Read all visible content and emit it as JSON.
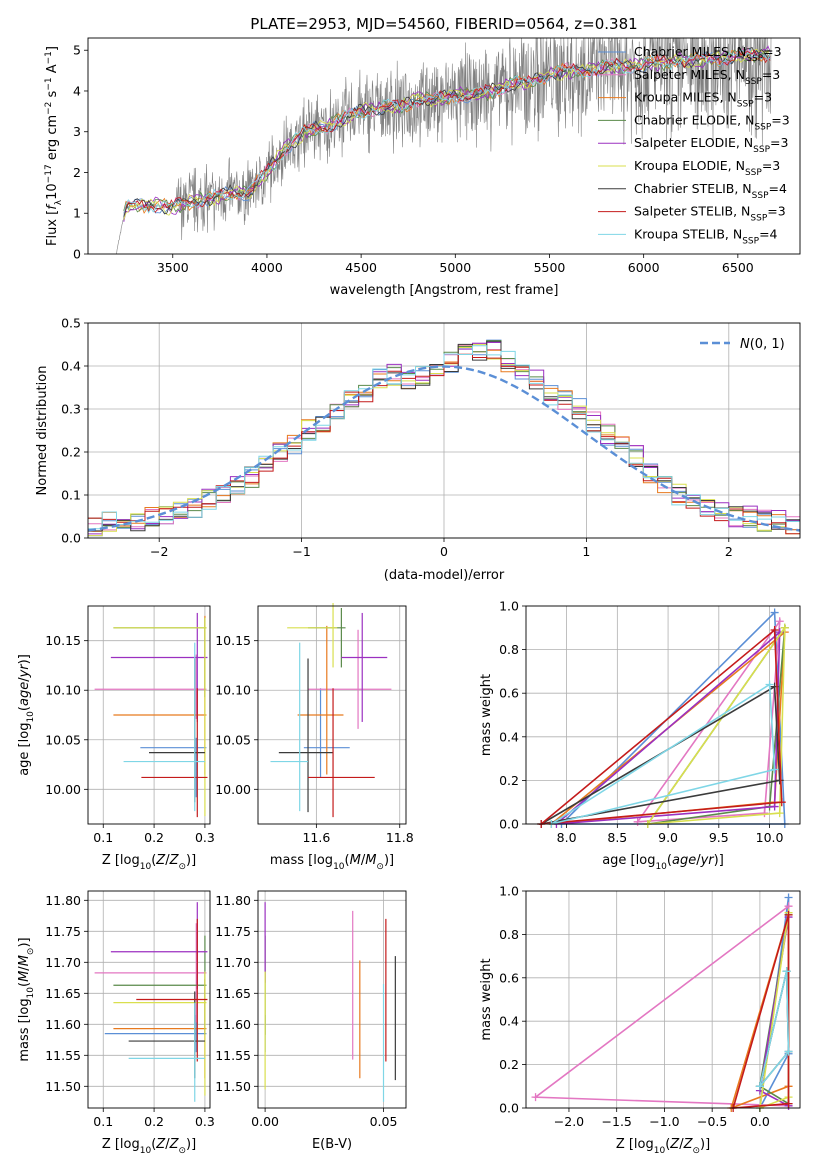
{
  "figure": {
    "title": "PLATE=2953, MJD=54560, FIBERID=0564, z=0.381"
  },
  "colors": {
    "Chabrier MILES": "#5b8fd6",
    "Salpeter MILES": "#e377c2",
    "Kroupa MILES": "#e87a1f",
    "Chabrier ELODIE": "#5a8a4a",
    "Salpeter ELODIE": "#9b30c0",
    "Kroupa ELODIE": "#d9df4e",
    "Chabrier STELIB": "#3b3b3b",
    "Salpeter STELIB": "#c41b1b",
    "Kroupa STELIB": "#7fd6e6",
    "gaussian": "#5b8fd6",
    "spectrum": "#808080"
  },
  "chart_data": [
    {
      "id": "spectrum",
      "type": "line",
      "xlabel": "wavelength [Angstrom, rest frame]",
      "ylabel": "Flux [f_λ 10^-17 erg cm^-2 s^-1 A^-1]",
      "xlim": [
        3050,
        6830
      ],
      "ylim": [
        0,
        5.3
      ],
      "xticks": [
        3500,
        4000,
        4500,
        5000,
        5500,
        6000,
        6500
      ],
      "yticks": [
        0,
        1,
        2,
        3,
        4,
        5
      ],
      "data_trend": {
        "x": [
          3200,
          3250,
          3300,
          3400,
          3500,
          3600,
          3700,
          3800,
          3900,
          4000,
          4100,
          4200,
          4300,
          4400,
          4500,
          4600,
          4700,
          4800,
          4900,
          5000,
          5100,
          5200,
          5300,
          5400,
          5500,
          5600,
          5700,
          5800,
          5900,
          6000,
          6100,
          6200,
          6300,
          6400,
          6500,
          6600,
          6680
        ],
        "y": [
          0,
          1.15,
          1.2,
          1.2,
          1.15,
          1.3,
          1.35,
          1.5,
          1.5,
          2.0,
          2.6,
          3.0,
          3.1,
          3.3,
          3.5,
          3.6,
          3.6,
          3.8,
          3.8,
          3.9,
          3.9,
          4.0,
          4.2,
          4.2,
          4.4,
          4.5,
          4.5,
          4.6,
          4.6,
          4.65,
          4.7,
          4.75,
          4.75,
          4.8,
          4.85,
          4.9,
          4.9
        ]
      },
      "series": [
        {
          "name": "Chabrier MILES, N_SSP=3",
          "label": "Chabrier MILES, N",
          "n": "=3"
        },
        {
          "name": "Salpeter MILES, N_SSP=3",
          "label": "Salpeter MILES, N",
          "n": "=3"
        },
        {
          "name": "Kroupa MILES, N_SSP=3",
          "label": "Kroupa MILES, N",
          "n": "=3"
        },
        {
          "name": "Chabrier ELODIE, N_SSP=3",
          "label": "Chabrier ELODIE, N",
          "n": "=3"
        },
        {
          "name": "Salpeter ELODIE, N_SSP=3",
          "label": "Salpeter ELODIE, N",
          "n": "=3"
        },
        {
          "name": "Kroupa ELODIE, N_SSP=3",
          "label": "Kroupa ELODIE, N",
          "n": "=3"
        },
        {
          "name": "Chabrier STELIB, N_SSP=4",
          "label": "Chabrier STELIB, N",
          "n": "=4"
        },
        {
          "name": "Salpeter STELIB, N_SSP=3",
          "label": "Salpeter STELIB, N",
          "n": "=3"
        },
        {
          "name": "Kroupa STELIB, N_SSP=4",
          "label": "Kroupa STELIB, N",
          "n": "=4"
        }
      ],
      "legend": "top-right"
    },
    {
      "id": "histogram",
      "type": "bar",
      "xlabel": "(data-model)/error",
      "ylabel": "Normed distribution",
      "xlim": [
        -2.5,
        2.5
      ],
      "ylim": [
        0,
        0.5
      ],
      "xticks": [
        -2,
        -1,
        0,
        1,
        2
      ],
      "yticks": [
        0.0,
        0.1,
        0.2,
        0.3,
        0.4,
        0.5
      ],
      "grid": true,
      "bins": [
        -2.5,
        -2.4,
        -2.3,
        -2.2,
        -2.1,
        -2.0,
        -1.9,
        -1.8,
        -1.7,
        -1.6,
        -1.5,
        -1.4,
        -1.3,
        -1.2,
        -1.1,
        -1.0,
        -0.9,
        -0.8,
        -0.7,
        -0.6,
        -0.5,
        -0.4,
        -0.3,
        -0.2,
        -0.1,
        0.0,
        0.1,
        0.2,
        0.3,
        0.4,
        0.5,
        0.6,
        0.7,
        0.8,
        0.9,
        1.0,
        1.1,
        1.2,
        1.3,
        1.4,
        1.5,
        1.6,
        1.7,
        1.8,
        1.9,
        2.0,
        2.1,
        2.2,
        2.3,
        2.4,
        2.5
      ],
      "histogram_values": [
        0.03,
        0.04,
        0.03,
        0.04,
        0.05,
        0.05,
        0.06,
        0.07,
        0.09,
        0.1,
        0.12,
        0.14,
        0.17,
        0.2,
        0.22,
        0.25,
        0.27,
        0.3,
        0.33,
        0.34,
        0.37,
        0.38,
        0.37,
        0.38,
        0.4,
        0.41,
        0.43,
        0.43,
        0.44,
        0.41,
        0.38,
        0.37,
        0.33,
        0.32,
        0.3,
        0.27,
        0.24,
        0.22,
        0.19,
        0.15,
        0.12,
        0.1,
        0.08,
        0.07,
        0.06,
        0.05,
        0.05,
        0.04,
        0.04,
        0.03
      ],
      "gaussian_label": "N(0,1)",
      "legend": "top-right"
    },
    {
      "id": "z-age",
      "type": "scatter",
      "xlabel": "Z [log10(Z/Z⊙)]",
      "ylabel": "age  [log10(age/yr)]",
      "xlim": [
        0.07,
        0.31
      ],
      "ylim": [
        9.965,
        10.185
      ],
      "xticks": [
        0.1,
        0.2,
        0.3
      ],
      "yticks": [
        10.0,
        10.05,
        10.1,
        10.15
      ],
      "grid": true,
      "points": [
        {
          "series": "Chabrier MILES",
          "x": 0.283,
          "y": 10.042,
          "xerr": [
            0.11,
            0.02
          ],
          "yerr": [
            0.05,
            0.01
          ]
        },
        {
          "series": "Salpeter MILES",
          "x": 0.283,
          "y": 10.101,
          "xerr": [
            0.2,
            0.02
          ],
          "yerr": [
            0.03,
            0.035
          ]
        },
        {
          "series": "Kroupa MILES",
          "x": 0.3,
          "y": 10.075,
          "xerr": [
            0.18,
            0.003
          ],
          "yerr": [
            0.06,
            0.1
          ]
        },
        {
          "series": "Chabrier ELODIE",
          "x": 0.3,
          "y": 10.163,
          "xerr": [
            0.18,
            0.003
          ],
          "yerr": [
            0.07,
            0.01
          ]
        },
        {
          "series": "Salpeter ELODIE",
          "x": 0.285,
          "y": 10.133,
          "xerr": [
            0.17,
            0.02
          ],
          "yerr": [
            0.065,
            0.045
          ]
        },
        {
          "series": "Kroupa ELODIE",
          "x": 0.3,
          "y": 10.163,
          "xerr": [
            0.18,
            0.003
          ],
          "yerr": [
            0.19,
            0.01
          ]
        },
        {
          "series": "Chabrier STELIB",
          "x": 0.28,
          "y": 10.037,
          "xerr": [
            0.09,
            0.02
          ],
          "yerr": [
            0.05,
            0.095
          ]
        },
        {
          "series": "Salpeter STELIB",
          "x": 0.285,
          "y": 10.012,
          "xerr": [
            0.11,
            0.02
          ],
          "yerr": [
            0.04,
            0.09
          ]
        },
        {
          "series": "Kroupa STELIB",
          "x": 0.28,
          "y": 10.028,
          "xerr": [
            0.14,
            0.02
          ],
          "yerr": [
            0.05,
            0.12
          ]
        }
      ]
    },
    {
      "id": "mass-age",
      "type": "scatter",
      "xlabel": "mass [log10(M/M⊙)]",
      "ylabel": "",
      "xlim": [
        11.46,
        11.815
      ],
      "ylim": [
        9.965,
        10.185
      ],
      "xticks": [
        11.6,
        11.8
      ],
      "yticks": [
        10.0,
        10.05,
        10.1,
        10.15
      ],
      "grid": true,
      "points": [
        {
          "series": "Chabrier MILES",
          "x": 11.61,
          "y": 10.042,
          "xerr": [
            0.04,
            0.07
          ],
          "yerr": [
            0.03,
            0.06
          ]
        },
        {
          "series": "Salpeter MILES",
          "x": 11.7,
          "y": 10.101,
          "xerr": [
            0.12,
            0.08
          ],
          "yerr": [
            0.04,
            0.06
          ]
        },
        {
          "series": "Kroupa MILES",
          "x": 11.625,
          "y": 10.075,
          "xerr": [
            0.07,
            0.04
          ],
          "yerr": [
            0.06,
            0.09
          ]
        },
        {
          "series": "Chabrier ELODIE",
          "x": 11.66,
          "y": 10.163,
          "xerr": [
            0.08,
            0.01
          ],
          "yerr": [
            0.04,
            0.02
          ]
        },
        {
          "series": "Salpeter ELODIE",
          "x": 11.71,
          "y": 10.133,
          "xerr": [
            0.05,
            0.06
          ],
          "yerr": [
            0.065,
            0.045
          ]
        },
        {
          "series": "Kroupa ELODIE",
          "x": 11.64,
          "y": 10.163,
          "xerr": [
            0.11,
            0.01
          ],
          "yerr": [
            0.04,
            0.025
          ]
        },
        {
          "series": "Chabrier STELIB",
          "x": 11.58,
          "y": 10.037,
          "xerr": [
            0.07,
            0.06
          ],
          "yerr": [
            0.06,
            0.095
          ]
        },
        {
          "series": "Salpeter STELIB",
          "x": 11.64,
          "y": 10.012,
          "xerr": [
            0.06,
            0.1
          ],
          "yerr": [
            0.04,
            0.09
          ]
        },
        {
          "series": "Kroupa STELIB",
          "x": 11.56,
          "y": 10.028,
          "xerr": [
            0.07,
            0.02
          ],
          "yerr": [
            0.05,
            0.12
          ]
        }
      ]
    },
    {
      "id": "age-weight",
      "type": "line",
      "xlabel": "age  [log10(age/yr)]",
      "ylabel": "mass weight",
      "xlim": [
        7.6,
        10.3
      ],
      "ylim": [
        0.0,
        1.0
      ],
      "xticks": [
        8.0,
        8.5,
        9.0,
        9.5,
        10.0
      ],
      "yticks": [
        0.0,
        0.2,
        0.4,
        0.6,
        0.8,
        1.0
      ],
      "grid": true,
      "series": [
        {
          "name": "Chabrier MILES",
          "x": [
            7.95,
            10.05,
            10.15
          ],
          "y": [
            0.0,
            0.97,
            0.0
          ]
        },
        {
          "name": "Salpeter MILES",
          "x": [
            8.7,
            9.95,
            10.1
          ],
          "y": [
            0.01,
            0.05,
            0.93
          ]
        },
        {
          "name": "Kroupa MILES",
          "x": [
            7.85,
            10.05,
            10.15
          ],
          "y": [
            0.0,
            0.1,
            0.88
          ]
        },
        {
          "name": "Chabrier ELODIE",
          "x": [
            8.8,
            10.0,
            10.15
          ],
          "y": [
            0.0,
            0.08,
            0.9
          ]
        },
        {
          "name": "Salpeter ELODIE",
          "x": [
            7.9,
            10.05,
            10.1
          ],
          "y": [
            0.0,
            0.08,
            0.88
          ]
        },
        {
          "name": "Kroupa ELODIE",
          "x": [
            8.8,
            10.15,
            10.1
          ],
          "y": [
            0.0,
            0.9,
            0.05
          ]
        },
        {
          "name": "Chabrier STELIB",
          "x": [
            7.75,
            10.05,
            10.1
          ],
          "y": [
            0.0,
            0.63,
            0.2
          ]
        },
        {
          "name": "Salpeter STELIB",
          "x": [
            7.75,
            10.05,
            10.12
          ],
          "y": [
            0.0,
            0.89,
            0.1
          ]
        },
        {
          "name": "Kroupa STELIB",
          "x": [
            7.85,
            10.0,
            10.05
          ],
          "y": [
            0.0,
            0.64,
            0.25
          ]
        }
      ]
    },
    {
      "id": "z-mass",
      "type": "scatter",
      "xlabel": "Z [log10(Z/Z⊙)]",
      "ylabel": "mass [log10(M/M⊙)]",
      "xlim": [
        0.07,
        0.31
      ],
      "ylim": [
        11.465,
        11.815
      ],
      "xticks": [
        0.1,
        0.2,
        0.3
      ],
      "yticks": [
        11.5,
        11.55,
        11.6,
        11.65,
        11.7,
        11.75,
        11.8
      ],
      "grid": true,
      "points": [
        {
          "series": "Chabrier MILES",
          "x": 0.283,
          "y": 11.585,
          "xerr": [
            0.18,
            0.02
          ],
          "yerr": [
            0.03,
            0.03
          ]
        },
        {
          "series": "Salpeter MILES",
          "x": 0.283,
          "y": 11.683,
          "xerr": [
            0.2,
            0.02
          ],
          "yerr": [
            0.08,
            0.08
          ]
        },
        {
          "series": "Kroupa MILES",
          "x": 0.3,
          "y": 11.593,
          "xerr": [
            0.18,
            0.003
          ],
          "yerr": [
            0.08,
            0.08
          ]
        },
        {
          "series": "Chabrier ELODIE",
          "x": 0.3,
          "y": 11.663,
          "xerr": [
            0.18,
            0.003
          ],
          "yerr": [
            0.08,
            0.08
          ]
        },
        {
          "series": "Salpeter ELODIE",
          "x": 0.285,
          "y": 11.717,
          "xerr": [
            0.17,
            0.02
          ],
          "yerr": [
            0.06,
            0.08
          ]
        },
        {
          "series": "Kroupa ELODIE",
          "x": 0.3,
          "y": 11.635,
          "xerr": [
            0.18,
            0.003
          ],
          "yerr": [
            0.15,
            0.05
          ]
        },
        {
          "series": "Chabrier STELIB",
          "x": 0.28,
          "y": 11.573,
          "xerr": [
            0.13,
            0.02
          ],
          "yerr": [
            0.06,
            0.08
          ]
        },
        {
          "series": "Salpeter STELIB",
          "x": 0.285,
          "y": 11.64,
          "xerr": [
            0.12,
            0.02
          ],
          "yerr": [
            0.1,
            0.13
          ]
        },
        {
          "series": "Kroupa STELIB",
          "x": 0.28,
          "y": 11.545,
          "xerr": [
            0.13,
            0.02
          ],
          "yerr": [
            0.07,
            0.09
          ]
        }
      ]
    },
    {
      "id": "ebv-mass",
      "type": "scatter",
      "xlabel": "E(B-V)",
      "ylabel": "",
      "xlim": [
        -0.003,
        0.0595
      ],
      "ylim": [
        11.465,
        11.815
      ],
      "xticks": [
        0.0,
        0.05
      ],
      "yticks": [
        11.5,
        11.55,
        11.6,
        11.65,
        11.7,
        11.75,
        11.8
      ],
      "grid": true,
      "points": [
        {
          "series": "Chabrier MILES",
          "x": 0.0,
          "y": 11.585,
          "yerr": [
            0.03,
            0.03
          ]
        },
        {
          "series": "Salpeter MILES",
          "x": 0.037,
          "y": 11.683,
          "yerr": [
            0.14,
            0.1
          ]
        },
        {
          "series": "Kroupa MILES",
          "x": 0.04,
          "y": 11.593,
          "yerr": [
            0.08,
            0.11
          ]
        },
        {
          "series": "Chabrier ELODIE",
          "x": 0.0,
          "y": 11.663,
          "yerr": [
            0.08,
            0.08
          ]
        },
        {
          "series": "Salpeter ELODIE",
          "x": 0.0,
          "y": 11.717,
          "yerr": [
            0.05,
            0.08
          ]
        },
        {
          "series": "Kroupa ELODIE",
          "x": 0.0,
          "y": 11.635,
          "yerr": [
            0.14,
            0.05
          ]
        },
        {
          "series": "Chabrier STELIB",
          "x": 0.055,
          "y": 11.61,
          "yerr": [
            0.1,
            0.1
          ]
        },
        {
          "series": "Salpeter STELIB",
          "x": 0.051,
          "y": 11.64,
          "yerr": [
            0.1,
            0.13
          ]
        },
        {
          "series": "Kroupa STELIB",
          "x": 0.05,
          "y": 11.545,
          "yerr": [
            0.07,
            0.12
          ]
        }
      ]
    },
    {
      "id": "z-weight",
      "type": "line",
      "xlabel": "Z [log10(Z/Z⊙)]",
      "ylabel": "mass weight",
      "xlim": [
        -2.45,
        0.42
      ],
      "ylim": [
        0.0,
        1.0
      ],
      "xticks": [
        -2.0,
        -1.5,
        -1.0,
        -0.5,
        0.0
      ],
      "yticks": [
        0.0,
        0.2,
        0.4,
        0.6,
        0.8,
        1.0
      ],
      "grid": true,
      "series": [
        {
          "name": "Chabrier MILES",
          "x": [
            0.0,
            0.3,
            0.3
          ],
          "y": [
            0.0,
            0.97,
            0.25
          ]
        },
        {
          "name": "Salpeter MILES",
          "x": [
            -2.35,
            0.3,
            0.3
          ],
          "y": [
            0.05,
            0.93,
            0.01
          ]
        },
        {
          "name": "Kroupa MILES",
          "x": [
            -0.3,
            0.3,
            0.3
          ],
          "y": [
            0.0,
            0.89,
            0.1
          ]
        },
        {
          "name": "Chabrier ELODIE",
          "x": [
            0.0,
            0.3,
            0.3
          ],
          "y": [
            0.1,
            0.89,
            0.02
          ]
        },
        {
          "name": "Salpeter ELODIE",
          "x": [
            0.0,
            0.3,
            0.3
          ],
          "y": [
            0.08,
            0.88,
            0.01
          ]
        },
        {
          "name": "Kroupa ELODIE",
          "x": [
            0.0,
            0.3,
            0.3
          ],
          "y": [
            0.0,
            0.9,
            0.05
          ]
        },
        {
          "name": "Chabrier STELIB",
          "x": [
            0.0,
            0.28,
            0.3
          ],
          "y": [
            0.1,
            0.63,
            0.26
          ]
        },
        {
          "name": "Salpeter STELIB",
          "x": [
            -0.28,
            0.3,
            0.3
          ],
          "y": [
            0.0,
            0.89,
            0.02
          ]
        },
        {
          "name": "Kroupa STELIB",
          "x": [
            0.0,
            0.28,
            0.3
          ],
          "y": [
            0.1,
            0.63,
            0.26
          ]
        }
      ]
    }
  ]
}
